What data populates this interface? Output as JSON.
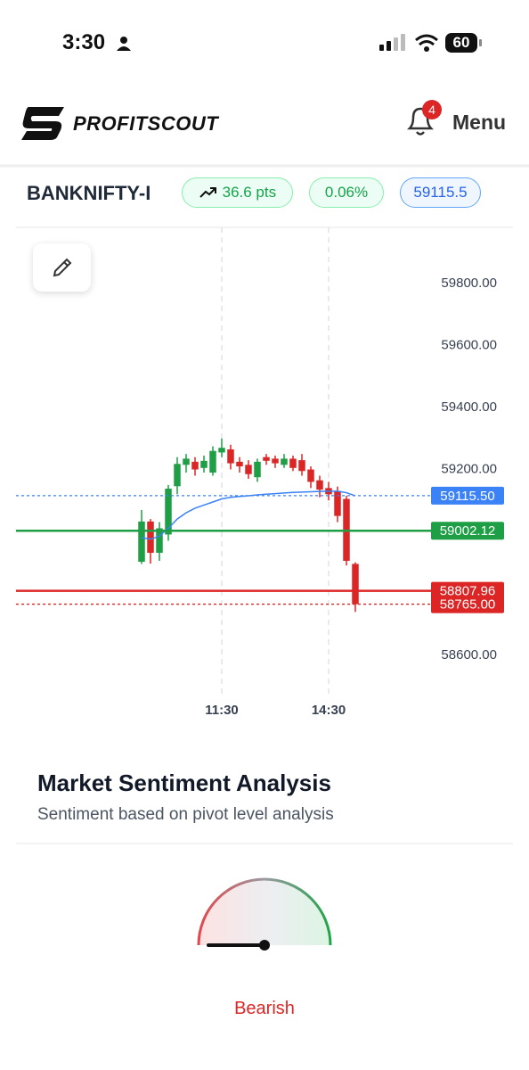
{
  "status_bar": {
    "time": "3:30",
    "battery": 60
  },
  "header": {
    "brand": "PROFITSCOUT",
    "notifications": 4,
    "menu": "Menu"
  },
  "ticker": {
    "symbol": "BANKNIFTY-I",
    "change": "36.6 pts",
    "change_pct": "0.06%",
    "price": "59115.5"
  },
  "chart_data": {
    "type": "candlestick",
    "x": [
      9.25,
      9.5,
      9.75,
      10,
      10.25,
      10.5,
      10.75,
      11,
      11.25,
      11.5,
      11.75,
      12,
      12.25,
      12.5,
      12.75,
      13,
      13.25,
      13.5,
      13.75,
      14,
      14.25,
      14.5,
      14.75,
      15,
      15.25
    ],
    "open": [
      58902,
      59032,
      58931,
      58990,
      59146,
      59215,
      59225,
      59205,
      59190,
      59255,
      59265,
      59225,
      59215,
      59175,
      59240,
      59235,
      59215,
      59235,
      59230,
      59200,
      59165,
      59140,
      59130,
      59105,
      58895
    ],
    "high": [
      59069,
      59040,
      59030,
      59150,
      59240,
      59250,
      59240,
      59245,
      59275,
      59300,
      59280,
      59240,
      59230,
      59235,
      59250,
      59245,
      59250,
      59245,
      59250,
      59210,
      59180,
      59160,
      59145,
      59115,
      58900
    ],
    "low": [
      58895,
      58896,
      58905,
      58970,
      59120,
      59190,
      59180,
      59190,
      59180,
      59240,
      59200,
      59190,
      59170,
      59160,
      59215,
      59205,
      59205,
      59195,
      59180,
      59140,
      59110,
      59100,
      59030,
      58890,
      58740
    ],
    "close": [
      59032,
      58931,
      59010,
      59138,
      59218,
      59235,
      59200,
      59228,
      59260,
      59270,
      59220,
      59210,
      59185,
      59225,
      59228,
      59220,
      59235,
      59205,
      59195,
      59160,
      59135,
      59120,
      59050,
      58905,
      58765
    ],
    "up_color": "#1e9e45",
    "down_color": "#dc2626",
    "overlay": {
      "color": "#3b82f6",
      "values": [
        58980,
        58975,
        58985,
        59010,
        59040,
        59060,
        59075,
        59085,
        59095,
        59105,
        59110,
        59113,
        59115,
        59118,
        59120,
        59122,
        59124,
        59126,
        59127,
        59128,
        59129,
        59130,
        59130,
        59125,
        59115
      ]
    },
    "levels": [
      {
        "value": 59115.5,
        "label": "59115.50",
        "color": "#3b82f6",
        "style": "dotted"
      },
      {
        "value": 59002.12,
        "label": "59002.12",
        "color": "#1e9e45",
        "style": "solid"
      },
      {
        "value": 58807.96,
        "label": "58807.96",
        "color": "#dc2626",
        "style": "solid"
      },
      {
        "value": 58765,
        "label": "58765.00",
        "color": "#dc2626",
        "style": "dotted"
      }
    ],
    "xlim": [
      5.725,
      17.275
    ],
    "ylim": [
      58470,
      59982
    ],
    "xticks": [
      {
        "value": 11.5,
        "label": "11:30"
      },
      {
        "value": 14.5,
        "label": "14:30"
      }
    ],
    "yticks": [
      {
        "value": 58600,
        "label": "58600.00"
      },
      {
        "value": 59200,
        "label": "59200.00"
      },
      {
        "value": 59400,
        "label": "59400.00"
      },
      {
        "value": 59600,
        "label": "59600.00"
      },
      {
        "value": 59800,
        "label": "59800.00"
      }
    ]
  },
  "sentiment": {
    "title": "Market Sentiment Analysis",
    "subtitle": "Sentiment based on pivot level analysis",
    "label": "Bearish"
  }
}
